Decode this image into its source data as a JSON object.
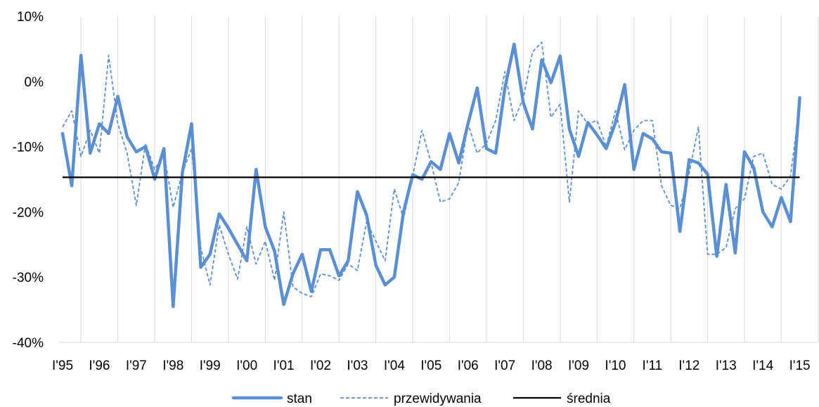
{
  "chart_data": {
    "type": "line",
    "ylim": [
      -40,
      10
    ],
    "y_ticks": [
      "10%",
      "0%",
      "-10%",
      "-20%",
      "-30%",
      "-40%"
    ],
    "y_tick_values": [
      10,
      0,
      -10,
      -20,
      -30,
      -40
    ],
    "x_labels": [
      "I'95",
      "I'96",
      "I'97",
      "I'98",
      "I'99",
      "I'00",
      "I'01",
      "I'02",
      "I'03",
      "I'04",
      "I'05",
      "I'06",
      "I'07",
      "I'08",
      "I'09",
      "I'10",
      "I'11",
      "I'12",
      "I'13",
      "I'14",
      "I'15"
    ],
    "periods_per_label": 4,
    "grid": "vertical",
    "legend_position": "bottom",
    "series": [
      {
        "name": "stan",
        "color": "#5B8FD4",
        "style": "solid-thick",
        "values": [
          -8,
          -16,
          4,
          -11,
          -6.5,
          -8,
          -2.3,
          -8.5,
          -10.8,
          -10,
          -15,
          -10.3,
          -34.5,
          -14,
          -6.5,
          -28.5,
          -26.5,
          -20.3,
          -22.5,
          -25,
          -27.5,
          -13.5,
          -22.3,
          -26,
          -34.2,
          -29.5,
          -26.5,
          -32.2,
          -25.8,
          -25.8,
          -29.8,
          -27.5,
          -16.9,
          -20.5,
          -28.2,
          -31.2,
          -30,
          -20,
          -14.3,
          -15,
          -12.3,
          -13.5,
          -8,
          -12.5,
          -6.5,
          -1,
          -10.3,
          -11,
          -1,
          5.7,
          -3.3,
          -7.3,
          3.3,
          -0.2,
          3.9,
          -7.3,
          -11.5,
          -6.3,
          -8.2,
          -10.3,
          -6.3,
          -0.5,
          -13.5,
          -8,
          -8.8,
          -10.8,
          -11,
          -23,
          -12,
          -12.5,
          -14.2,
          -26.8,
          -15.8,
          -26.3,
          -10.8,
          -13.2,
          -20,
          -22.3,
          -17.8,
          -21.5,
          -2.5
        ]
      },
      {
        "name": "przewidywania",
        "color": "#5B8FD4",
        "style": "dashed",
        "values": [
          -7,
          -4.5,
          -11.5,
          -7.5,
          -11,
          4,
          -6.5,
          -11,
          -19,
          -9.5,
          -13.5,
          -11,
          -19.3,
          -14,
          -10.3,
          -25.5,
          -31.2,
          -22,
          -26.5,
          -30.3,
          -22.3,
          -28,
          -24.5,
          -30.5,
          -20,
          -31.5,
          -32.5,
          -33,
          -29.5,
          -29.8,
          -30.5,
          -28,
          -29,
          -21.5,
          -24.5,
          -27.5,
          -16.5,
          -21,
          -14.5,
          -7.5,
          -12.5,
          -18.5,
          -18,
          -15.5,
          -6.5,
          -11,
          -9.5,
          -6,
          1.5,
          -6,
          -2.5,
          4.5,
          6,
          -5.5,
          -3.5,
          -18.5,
          -4.5,
          -6.5,
          -6,
          -10,
          -4.5,
          -10.5,
          -7.5,
          -6,
          -6,
          -16,
          -19,
          -19.5,
          -14,
          -7,
          -26.5,
          -26.5,
          -25.5,
          -19.5,
          -18,
          -11.5,
          -11,
          -15.8,
          -16.5,
          -14.5,
          -3.5
        ]
      },
      {
        "name": "średnia",
        "color": "#000000",
        "style": "solid-thin",
        "constant_value": -14.7
      }
    ],
    "legend": [
      {
        "label": "stan",
        "style": "solid-thick",
        "color": "#5B8FD4"
      },
      {
        "label": "przewidywania",
        "style": "dashed",
        "color": "#5B8FD4"
      },
      {
        "label": "średnia",
        "style": "solid-thin",
        "color": "#000000"
      }
    ]
  }
}
